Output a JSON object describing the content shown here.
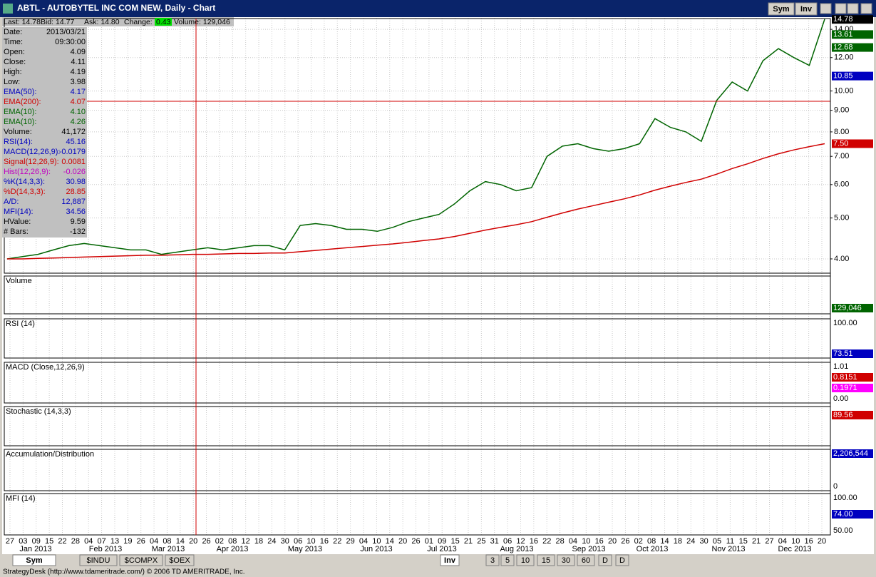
{
  "window": {
    "title": "ABTL - AUTOBYTEL INC COM NEW, Daily - Chart",
    "buttons": [
      "Sym",
      "Inv"
    ]
  },
  "quote": [
    "Last: 14.78",
    "Bid: 14.77",
    "Ask: 14.80",
    "Change:",
    "0.43",
    "Volume: 129,046"
  ],
  "info": [
    {
      "label": "Date:",
      "value": "2013/03/21",
      "color": "#000000"
    },
    {
      "label": "Time:",
      "value": "09:30:00",
      "color": "#000000"
    },
    {
      "label": "Open:",
      "value": "4.09",
      "color": "#000000"
    },
    {
      "label": "Close:",
      "value": "4.11",
      "color": "#000000"
    },
    {
      "label": "High:",
      "value": "4.19",
      "color": "#000000"
    },
    {
      "label": "Low:",
      "value": "3.98",
      "color": "#000000"
    },
    {
      "label": "EMA(50):",
      "value": "4.17",
      "color": "#0000c0"
    },
    {
      "label": "EMA(200):",
      "value": "4.07",
      "color": "#d00000"
    },
    {
      "label": "EMA(10):",
      "value": "4.10",
      "color": "#006400"
    },
    {
      "label": "EMA(10):",
      "value": "4.26",
      "color": "#006400"
    },
    {
      "label": "Volume:",
      "value": "41,172",
      "color": "#000000"
    },
    {
      "label": "RSI(14):",
      "value": "45.16",
      "color": "#0000c0"
    },
    {
      "label": "MACD(12,26,9):",
      "value": "-0.0179",
      "color": "#0000c0"
    },
    {
      "label": "Signal(12,26,9):",
      "value": "0.0081",
      "color": "#d00000"
    },
    {
      "label": "Hist(12,26,9):",
      "value": "-0.026",
      "color": "#c000c0"
    },
    {
      "label": "%K(14,3,3):",
      "value": "30.98",
      "color": "#0000c0"
    },
    {
      "label": "%D(14,3,3):",
      "value": "28.85",
      "color": "#d00000"
    },
    {
      "label": "A/D:",
      "value": "12,887",
      "color": "#0000c0"
    },
    {
      "label": "MFI(14):",
      "value": "34.56",
      "color": "#0000c0"
    },
    {
      "label": "HValue:",
      "value": "9.59",
      "color": "#000000"
    },
    {
      "label": "# Bars:",
      "value": "-132",
      "color": "#000000"
    }
  ],
  "price_chart": {
    "type": "line",
    "log_scale": true,
    "ylim": [
      3.7,
      14.85
    ],
    "yticks": [
      {
        "value": 4,
        "label": "4.00"
      },
      {
        "value": 5,
        "label": "5.00"
      },
      {
        "value": 6,
        "label": "6.00"
      },
      {
        "value": 7,
        "label": "7.00"
      },
      {
        "value": 8,
        "label": "8.00"
      },
      {
        "value": 9,
        "label": "9.00"
      },
      {
        "value": 10,
        "label": "10.00"
      },
      {
        "value": 12,
        "label": "12.00"
      },
      {
        "value": 14,
        "label": "14.00"
      }
    ],
    "series": [
      {
        "color": "#006400",
        "values": [
          4.0,
          4.05,
          4.1,
          4.2,
          4.3,
          4.35,
          4.3,
          4.25,
          4.2,
          4.2,
          4.1,
          4.15,
          4.2,
          4.25,
          4.2,
          4.25,
          4.3,
          4.3,
          4.2,
          4.8,
          4.85,
          4.8,
          4.7,
          4.7,
          4.65,
          4.75,
          4.9,
          5.0,
          5.1,
          5.4,
          5.8,
          6.1,
          6.0,
          5.8,
          5.9,
          7.0,
          7.4,
          7.5,
          7.3,
          7.2,
          7.3,
          7.5,
          8.6,
          8.2,
          8.0,
          7.6,
          9.5,
          10.5,
          10.0,
          11.8,
          12.6,
          12.0,
          11.5,
          14.8
        ]
      },
      {
        "color": "#d00000",
        "values": [
          4.0,
          4.0,
          4.01,
          4.02,
          4.03,
          4.04,
          4.05,
          4.06,
          4.07,
          4.08,
          4.08,
          4.09,
          4.1,
          4.1,
          4.11,
          4.12,
          4.12,
          4.13,
          4.13,
          4.16,
          4.19,
          4.22,
          4.25,
          4.28,
          4.31,
          4.34,
          4.38,
          4.42,
          4.46,
          4.52,
          4.6,
          4.68,
          4.75,
          4.82,
          4.9,
          5.02,
          5.14,
          5.25,
          5.35,
          5.45,
          5.55,
          5.67,
          5.82,
          5.95,
          6.07,
          6.18,
          6.35,
          6.55,
          6.72,
          6.92,
          7.1,
          7.25,
          7.38,
          7.5
        ]
      }
    ],
    "badges": [
      {
        "value": 14.78,
        "label": "14.78",
        "bg": "#000000"
      },
      {
        "value": 13.61,
        "label": "13.61",
        "bg": "#006400"
      },
      {
        "value": 12.68,
        "label": "12.68",
        "bg": "#006400"
      },
      {
        "value": 10.85,
        "label": "10.85",
        "bg": "#0000c0"
      },
      {
        "value": 7.5,
        "label": "7.50",
        "bg": "#d00000"
      }
    ]
  },
  "panels": [
    {
      "label": "Volume",
      "badges": [
        {
          "text": "129,046",
          "bg": "#006400",
          "fg": "#ffffff"
        }
      ]
    },
    {
      "label": "RSI (14)",
      "badges": [
        {
          "text": "100.00",
          "bg": "none",
          "fg": "#000000"
        },
        {
          "text": "73.51",
          "bg": "#0000c0",
          "fg": "#ffffff"
        }
      ]
    },
    {
      "label": "MACD (Close,12,26,9)",
      "badges": [
        {
          "text": "1.01",
          "bg": "none",
          "fg": "#000000"
        },
        {
          "text": "0.8151",
          "bg": "#d00000",
          "fg": "#ffffff"
        },
        {
          "text": "0.1971",
          "bg": "#ff00ff",
          "fg": "#ffffff"
        },
        {
          "text": "0.00",
          "bg": "none",
          "fg": "#000000"
        }
      ]
    },
    {
      "label": "Stochastic (14,3,3)",
      "badges": [
        {
          "text": "89.56",
          "bg": "#d00000",
          "fg": "#ffffff"
        }
      ]
    },
    {
      "label": "Accumulation/Distribution",
      "badges": [
        {
          "text": "2,206,544",
          "bg": "#0000c0",
          "fg": "#ffffff"
        },
        {
          "text": "0",
          "bg": "none",
          "fg": "#000000"
        }
      ]
    },
    {
      "label": "MFI (14)",
      "badges": [
        {
          "text": "100.00",
          "bg": "none",
          "fg": "#000000"
        },
        {
          "text": "74.00",
          "bg": "#0000c0",
          "fg": "#ffffff"
        },
        {
          "text": "50.00",
          "bg": "none",
          "fg": "#000000"
        }
      ]
    }
  ],
  "dates": {
    "days": [
      "27",
      "03",
      "09",
      "15",
      "22",
      "28",
      "04",
      "07",
      "13",
      "19",
      "26",
      "04",
      "08",
      "14",
      "20",
      "26",
      "02",
      "08",
      "12",
      "18",
      "24",
      "30",
      "06",
      "10",
      "16",
      "22",
      "29",
      "04",
      "10",
      "14",
      "20",
      "26",
      "01",
      "09",
      "15",
      "21",
      "25",
      "31",
      "06",
      "12",
      "16",
      "22",
      "28",
      "04",
      "10",
      "16",
      "20",
      "26",
      "02",
      "08",
      "14",
      "18",
      "24",
      "30",
      "05",
      "11",
      "15",
      "21",
      "27",
      "04",
      "10",
      "16",
      "20"
    ],
    "months": [
      "Jan 2013",
      "Feb 2013",
      "Mar 2013",
      "Apr 2013",
      "May 2013",
      "Jun 2013",
      "Jul 2013",
      "Aug 2013",
      "Sep 2013",
      "Oct 2013",
      "Nov 2013",
      "Dec 2013"
    ]
  },
  "tabs": [
    "Sym",
    "$INDU",
    "$COMPX",
    "$OEX",
    "Inv",
    "3",
    "5",
    "10",
    "15",
    "30",
    "60",
    "D",
    "D"
  ],
  "status": "StrategyDesk (http://www.tdameritrade.com/) © 2006 TD AMERITRADE, Inc."
}
